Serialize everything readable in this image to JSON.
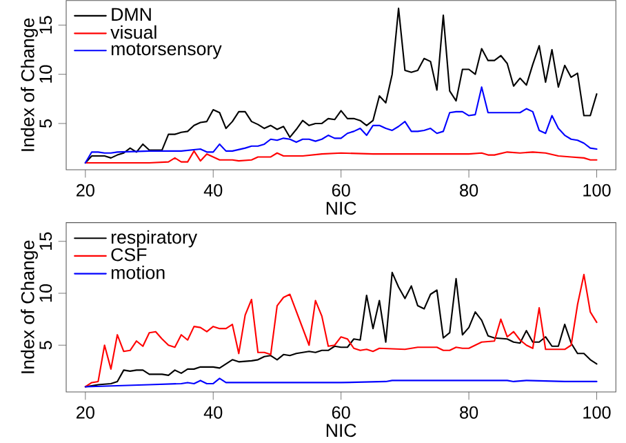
{
  "chart_data": [
    {
      "type": "line",
      "xlabel": "NIC",
      "ylabel": "Index of Change",
      "xlim": [
        17,
        103
      ],
      "ylim": [
        0.3,
        17.5
      ],
      "xticks": [
        20,
        40,
        60,
        80,
        100
      ],
      "yticks": [
        5,
        10,
        15
      ],
      "grid": false,
      "legend": "top left",
      "marker": "none",
      "line_style": "solid",
      "series": [
        {
          "name": "DMN",
          "color": "#000000",
          "x": [
            20,
            21,
            22,
            23,
            24,
            25,
            26,
            27,
            28,
            29,
            30,
            31,
            32,
            33,
            34,
            35,
            36,
            37,
            38,
            39,
            40,
            41,
            42,
            43,
            44,
            45,
            46,
            47,
            48,
            49,
            50,
            51,
            52,
            53,
            54,
            55,
            56,
            57,
            58,
            59,
            60,
            61,
            62,
            63,
            64,
            65,
            66,
            67,
            68,
            69,
            70,
            71,
            72,
            73,
            74,
            75,
            76,
            77,
            78,
            79,
            80,
            81,
            82,
            83,
            84,
            85,
            86,
            87,
            88,
            89,
            90,
            91,
            92,
            93,
            94,
            95,
            96,
            97,
            98,
            99,
            100
          ],
          "values": [
            1.0,
            1.7,
            1.7,
            1.7,
            1.5,
            1.8,
            2.0,
            2.5,
            2.1,
            2.9,
            2.3,
            2.3,
            2.3,
            3.9,
            3.9,
            4.1,
            4.2,
            4.8,
            5.1,
            5.2,
            6.4,
            6.1,
            4.5,
            5.2,
            6.2,
            6.2,
            5.2,
            4.9,
            4.5,
            4.8,
            4.4,
            4.7,
            3.6,
            4.4,
            5.3,
            4.8,
            5.0,
            5.0,
            5.5,
            5.4,
            6.3,
            5.5,
            5.5,
            5.3,
            4.8,
            5.3,
            7.8,
            7.1,
            10.0,
            16.7,
            10.4,
            10.2,
            10.4,
            11.6,
            11.3,
            8.4,
            16.0,
            8.3,
            7.3,
            10.5,
            10.5,
            10.0,
            12.6,
            11.4,
            11.4,
            11.9,
            11.1,
            8.8,
            9.6,
            8.9,
            11.0,
            12.9,
            9.2,
            12.5,
            8.7,
            10.9,
            9.7,
            10.1,
            5.8,
            5.8,
            8.0
          ]
        },
        {
          "name": "visual",
          "color": "#ff0000",
          "x": [
            20,
            30,
            33,
            34,
            35,
            36,
            37,
            38,
            39,
            40,
            41,
            43,
            44,
            46,
            47,
            49,
            50,
            51,
            54,
            57,
            60,
            65,
            70,
            75,
            80,
            82,
            83,
            84,
            86,
            88,
            90,
            92,
            94,
            96,
            98,
            99,
            100
          ],
          "values": [
            1.0,
            1.0,
            1.1,
            1.5,
            1.1,
            1.1,
            2.2,
            1.2,
            1.9,
            1.6,
            1.3,
            1.3,
            1.2,
            1.3,
            1.6,
            1.6,
            2.0,
            1.7,
            1.7,
            1.9,
            2.0,
            1.9,
            1.9,
            1.9,
            1.9,
            2.0,
            1.8,
            1.8,
            2.1,
            2.0,
            2.1,
            2.0,
            1.7,
            1.6,
            1.5,
            1.3,
            1.3
          ]
        },
        {
          "name": "motorsensory",
          "color": "#0000ff",
          "x": [
            20,
            21,
            22,
            23,
            24,
            25,
            30,
            35,
            38,
            39,
            40,
            41,
            42,
            43,
            45,
            46,
            47,
            48,
            49,
            50,
            51,
            52,
            53,
            54,
            55,
            56,
            57,
            58,
            59,
            60,
            61,
            62,
            63,
            64,
            65,
            66,
            67,
            68,
            69,
            70,
            71,
            72,
            73,
            74,
            75,
            76,
            77,
            78,
            79,
            80,
            81,
            82,
            83,
            84,
            85,
            86,
            87,
            88,
            89,
            90,
            91,
            92,
            93,
            94,
            95,
            96,
            97,
            98,
            99,
            100
          ],
          "values": [
            1.0,
            2.1,
            2.1,
            2.0,
            2.0,
            2.1,
            2.2,
            2.2,
            2.4,
            2.1,
            2.1,
            2.9,
            2.2,
            2.2,
            2.5,
            2.7,
            2.7,
            2.9,
            3.4,
            3.3,
            3.5,
            3.4,
            3.1,
            3.4,
            3.4,
            3.2,
            3.4,
            3.8,
            3.5,
            3.5,
            4.0,
            4.2,
            4.5,
            3.8,
            4.8,
            4.8,
            4.5,
            4.3,
            4.7,
            5.2,
            4.2,
            4.2,
            4.3,
            4.5,
            4.0,
            4.2,
            6.1,
            6.2,
            6.2,
            5.8,
            5.9,
            8.7,
            6.1,
            6.1,
            6.1,
            6.1,
            6.1,
            6.1,
            6.5,
            6.2,
            4.3,
            4.0,
            5.8,
            4.5,
            3.8,
            3.4,
            3.3,
            3.0,
            2.5,
            2.4
          ]
        }
      ]
    },
    {
      "type": "line",
      "xlabel": "NIC",
      "ylabel": "Index of Change",
      "xlim": [
        17,
        103
      ],
      "ylim": [
        0.5,
        16.8
      ],
      "xticks": [
        20,
        40,
        60,
        80,
        100
      ],
      "yticks": [
        5,
        10,
        15
      ],
      "grid": false,
      "legend": "top left",
      "marker": "none",
      "line_style": "solid",
      "series": [
        {
          "name": "respiratory",
          "color": "#000000",
          "x": [
            20,
            22,
            24,
            25,
            26,
            27,
            28,
            29,
            30,
            32,
            33,
            34,
            35,
            36,
            37,
            38,
            40,
            41,
            42,
            43,
            44,
            46,
            47,
            48,
            49,
            50,
            51,
            52,
            53,
            55,
            56,
            57,
            58,
            59,
            60,
            61,
            62,
            63,
            64,
            65,
            66,
            67,
            68,
            69,
            70,
            71,
            72,
            73,
            74,
            75,
            76,
            77,
            78,
            79,
            80,
            81,
            82,
            83,
            84,
            86,
            87,
            88,
            89,
            90,
            91,
            92,
            93,
            94,
            95,
            96,
            97,
            98,
            99,
            100
          ],
          "values": [
            1.0,
            1.2,
            1.3,
            1.5,
            2.6,
            2.5,
            2.6,
            2.6,
            2.2,
            2.2,
            2.1,
            2.6,
            2.3,
            2.7,
            2.7,
            2.9,
            2.9,
            2.8,
            3.2,
            3.6,
            3.4,
            3.5,
            3.6,
            3.9,
            4.0,
            3.6,
            4.1,
            4.0,
            4.2,
            4.4,
            4.3,
            4.5,
            4.5,
            4.9,
            4.8,
            4.8,
            5.6,
            5.5,
            9.8,
            6.6,
            9.3,
            5.3,
            12.0,
            10.6,
            9.5,
            10.7,
            8.8,
            8.5,
            9.9,
            10.3,
            5.7,
            6.2,
            11.4,
            6.0,
            6.7,
            8.2,
            7.4,
            5.9,
            5.7,
            5.6,
            5.3,
            5.2,
            6.4,
            5.3,
            5.3,
            5.8,
            4.9,
            4.9,
            7.0,
            5.2,
            4.2,
            4.2,
            3.6,
            3.2
          ]
        },
        {
          "name": "CSF",
          "color": "#ff0000",
          "x": [
            20,
            21,
            22,
            23,
            24,
            25,
            26,
            27,
            28,
            29,
            30,
            31,
            32,
            33,
            34,
            35,
            36,
            37,
            38,
            39,
            40,
            41,
            42,
            43,
            44,
            45,
            46,
            47,
            48,
            49,
            50,
            51,
            52,
            55,
            56,
            57,
            58,
            59,
            60,
            61,
            62,
            63,
            64,
            65,
            66,
            70,
            72,
            75,
            76,
            77,
            78,
            79,
            80,
            82,
            84,
            85,
            86,
            87,
            88,
            89,
            90,
            91,
            92,
            95,
            96,
            97,
            98,
            99,
            100
          ],
          "values": [
            1.0,
            1.4,
            1.5,
            5.0,
            2.7,
            6.0,
            4.4,
            4.5,
            5.4,
            4.9,
            6.2,
            6.3,
            5.6,
            5.0,
            4.8,
            6.0,
            5.5,
            6.8,
            6.7,
            6.3,
            6.8,
            6.6,
            6.6,
            7.0,
            4.2,
            7.9,
            9.4,
            4.3,
            4.3,
            4.1,
            8.8,
            9.6,
            9.9,
            5.0,
            9.3,
            7.8,
            4.9,
            5.0,
            5.8,
            5.6,
            4.7,
            4.5,
            4.6,
            4.4,
            4.7,
            4.6,
            4.8,
            4.8,
            4.5,
            4.5,
            4.8,
            4.7,
            4.7,
            5.3,
            5.4,
            7.5,
            5.8,
            6.3,
            5.5,
            5.0,
            4.7,
            8.6,
            4.6,
            4.6,
            5.0,
            8.9,
            11.8,
            8.2,
            7.2
          ]
        },
        {
          "name": "motion",
          "color": "#0000ff",
          "x": [
            20,
            25,
            30,
            35,
            36,
            37,
            38,
            39,
            40,
            41,
            42,
            50,
            60,
            67,
            68,
            75,
            80,
            86,
            87,
            89,
            95,
            97,
            100
          ],
          "values": [
            1.0,
            1.1,
            1.2,
            1.3,
            1.4,
            1.3,
            1.6,
            1.3,
            1.3,
            1.8,
            1.4,
            1.4,
            1.4,
            1.5,
            1.6,
            1.6,
            1.6,
            1.6,
            1.5,
            1.6,
            1.5,
            1.5,
            1.5
          ]
        }
      ]
    }
  ]
}
